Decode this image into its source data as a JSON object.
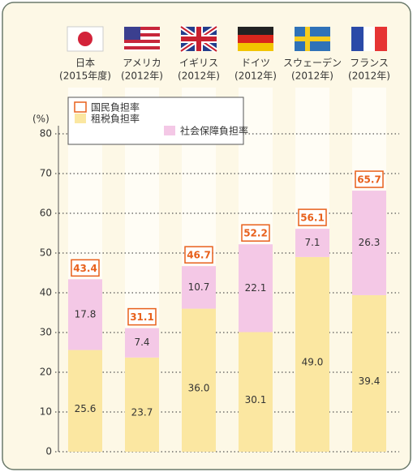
{
  "chart_data": {
    "type": "stacked_bar",
    "unit_label": "(%)",
    "categories": [
      "日本",
      "アメリカ",
      "イギリス",
      "ドイツ",
      "スウェーデン",
      "フランス"
    ],
    "category_notes": [
      "(2015年度)",
      "(2012年)",
      "(2012年)",
      "(2012年)",
      "(2012年)",
      "(2012年)"
    ],
    "series": [
      {
        "name": "租税負担率",
        "color": "#fbe7a1",
        "values": [
          25.6,
          23.7,
          36.0,
          30.1,
          49.0,
          39.4
        ],
        "value_labels": [
          "25.6",
          "23.7",
          "36.0",
          "30.1",
          "49.0",
          "39.4"
        ]
      },
      {
        "name": "社会保障負担率",
        "color": "#f4c8e6",
        "values": [
          17.8,
          7.4,
          10.7,
          22.1,
          7.1,
          26.3
        ],
        "value_labels": [
          "17.8",
          "7.4",
          "10.7",
          "22.1",
          "7.1",
          "26.3"
        ]
      }
    ],
    "totals": {
      "name": "国民負担率",
      "color": "#e8601c",
      "values": [
        43.4,
        31.1,
        46.7,
        52.2,
        56.1,
        65.7
      ]
    },
    "ylim": [
      0,
      80
    ],
    "yticks": [
      0,
      10,
      20,
      30,
      40,
      50,
      60,
      70,
      80
    ],
    "grid": true
  }
}
